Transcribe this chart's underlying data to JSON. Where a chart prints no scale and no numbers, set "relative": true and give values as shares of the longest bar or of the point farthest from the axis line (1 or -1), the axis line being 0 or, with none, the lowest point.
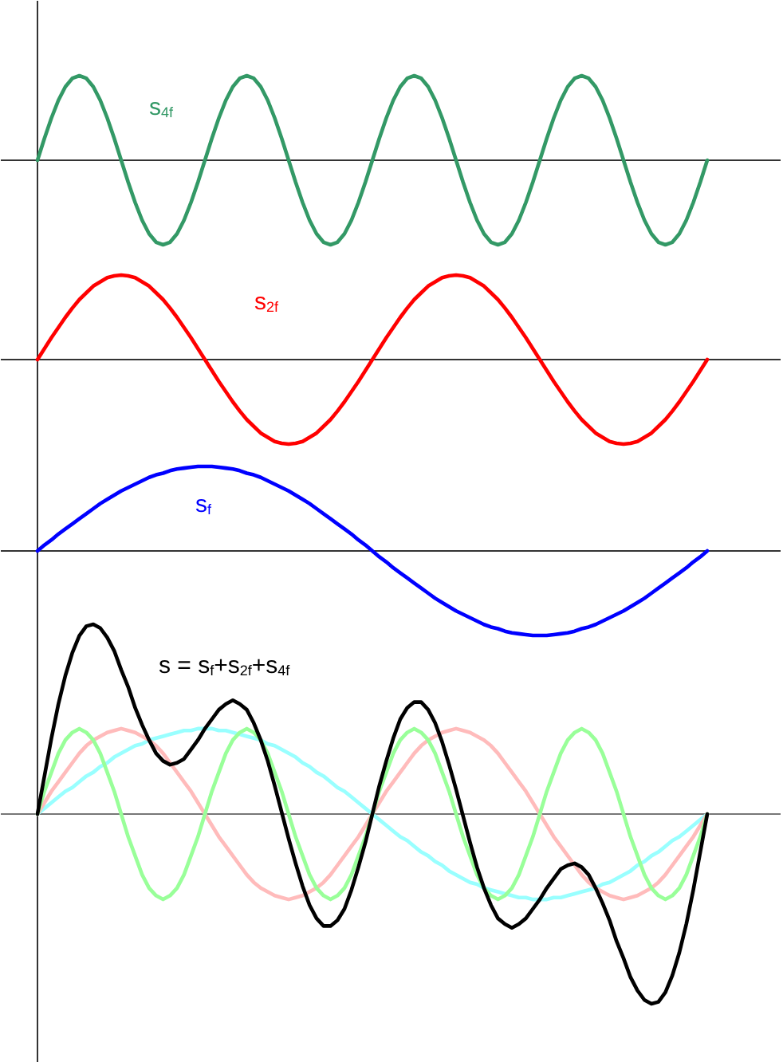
{
  "chart_data": [
    {
      "type": "line",
      "relative": true,
      "categories": [
        null,
        null,
        null,
        null,
        null,
        null,
        null,
        null,
        null,
        null,
        null,
        null,
        null,
        null,
        null,
        null,
        null,
        null,
        null,
        null,
        null,
        null,
        null,
        null,
        null,
        null,
        null,
        null,
        null,
        null,
        null,
        null,
        null,
        null,
        null,
        null,
        null,
        null,
        null,
        null,
        null,
        null,
        null,
        null,
        null,
        null,
        null,
        null,
        null,
        null,
        null,
        null,
        null,
        null,
        null,
        null,
        null,
        null,
        null,
        null,
        null,
        null,
        null,
        null,
        null,
        null,
        null,
        null,
        null,
        null,
        null,
        null,
        null,
        null,
        null,
        null,
        null,
        null,
        null,
        null,
        null,
        null,
        null,
        null,
        null,
        null,
        null,
        null,
        null,
        null,
        null,
        null,
        null,
        null,
        null,
        null,
        null
      ],
      "series": [
        {
          "name": "s$_{4f}$",
          "color": "#339966",
          "values": [
            0,
            0.26,
            0.5,
            0.71,
            0.87,
            0.97,
            1,
            0.97,
            0.87,
            0.71,
            0.5,
            0.26,
            0,
            -0.26,
            -0.5,
            -0.71,
            -0.87,
            -0.97,
            -1,
            -0.97,
            -0.87,
            -0.71,
            -0.5,
            -0.26,
            0,
            0.26,
            0.5,
            0.71,
            0.87,
            0.97,
            1,
            0.97,
            0.87,
            0.71,
            0.5,
            0.26,
            0,
            -0.26,
            -0.5,
            -0.71,
            -0.87,
            -0.97,
            -1,
            -0.97,
            -0.87,
            -0.71,
            -0.5,
            -0.26,
            0,
            0.26,
            0.5,
            0.71,
            0.87,
            0.97,
            1,
            0.97,
            0.87,
            0.71,
            0.5,
            0.26,
            0,
            -0.26,
            -0.5,
            -0.71,
            -0.87,
            -0.97,
            -1,
            -0.97,
            -0.87,
            -0.71,
            -0.5,
            -0.26,
            0,
            0.26,
            0.5,
            0.71,
            0.87,
            0.97,
            1,
            0.97,
            0.87,
            0.71,
            0.5,
            0.26,
            0,
            -0.26,
            -0.5,
            -0.71,
            -0.87,
            -0.97,
            -1,
            -0.97,
            -0.87,
            -0.71,
            -0.5,
            -0.26,
            0
          ]
        }
      ]
    },
    {
      "type": "line",
      "relative": true,
      "categories": [
        null,
        null,
        null,
        null,
        null,
        null,
        null,
        null,
        null,
        null,
        null,
        null,
        null,
        null,
        null,
        null,
        null,
        null,
        null,
        null,
        null,
        null,
        null,
        null,
        null,
        null,
        null,
        null,
        null,
        null,
        null,
        null,
        null,
        null,
        null,
        null,
        null,
        null,
        null,
        null,
        null,
        null,
        null,
        null,
        null,
        null,
        null,
        null,
        null,
        null,
        null,
        null,
        null,
        null,
        null,
        null,
        null,
        null,
        null,
        null,
        null,
        null,
        null,
        null,
        null,
        null,
        null,
        null,
        null,
        null,
        null,
        null,
        null,
        null,
        null,
        null,
        null,
        null,
        null,
        null,
        null,
        null,
        null,
        null,
        null,
        null,
        null,
        null,
        null,
        null,
        null,
        null,
        null,
        null,
        null,
        null,
        null
      ],
      "series": [
        {
          "name": "s$_{2f}$",
          "color": "#ff0000",
          "values": [
            0,
            0.13,
            0.26,
            0.38,
            0.5,
            0.61,
            0.71,
            0.79,
            0.87,
            0.92,
            0.97,
            0.99,
            1,
            0.99,
            0.97,
            0.92,
            0.87,
            0.79,
            0.71,
            0.61,
            0.5,
            0.38,
            0.26,
            0.13,
            0,
            -0.13,
            -0.26,
            -0.38,
            -0.5,
            -0.61,
            -0.71,
            -0.79,
            -0.87,
            -0.92,
            -0.97,
            -0.99,
            -1,
            -0.99,
            -0.97,
            -0.92,
            -0.87,
            -0.79,
            -0.71,
            -0.61,
            -0.5,
            -0.38,
            -0.26,
            -0.13,
            0,
            0.13,
            0.26,
            0.38,
            0.5,
            0.61,
            0.71,
            0.79,
            0.87,
            0.92,
            0.97,
            0.99,
            1,
            0.99,
            0.97,
            0.92,
            0.87,
            0.79,
            0.71,
            0.61,
            0.5,
            0.38,
            0.26,
            0.13,
            0,
            -0.13,
            -0.26,
            -0.38,
            -0.5,
            -0.61,
            -0.71,
            -0.79,
            -0.87,
            -0.92,
            -0.97,
            -0.99,
            -1,
            -0.99,
            -0.97,
            -0.92,
            -0.87,
            -0.79,
            -0.71,
            -0.61,
            -0.5,
            -0.38,
            -0.26,
            -0.13,
            0
          ]
        }
      ]
    },
    {
      "type": "line",
      "relative": true,
      "categories": [
        null,
        null,
        null,
        null,
        null,
        null,
        null,
        null,
        null,
        null,
        null,
        null,
        null,
        null,
        null,
        null,
        null,
        null,
        null,
        null,
        null,
        null,
        null,
        null,
        null,
        null,
        null,
        null,
        null,
        null,
        null,
        null,
        null,
        null,
        null,
        null,
        null,
        null,
        null,
        null,
        null,
        null,
        null,
        null,
        null,
        null,
        null,
        null,
        null,
        null,
        null,
        null,
        null,
        null,
        null,
        null,
        null,
        null,
        null,
        null,
        null,
        null,
        null,
        null,
        null,
        null,
        null,
        null,
        null,
        null,
        null,
        null,
        null,
        null,
        null,
        null,
        null,
        null,
        null,
        null,
        null,
        null,
        null,
        null,
        null,
        null,
        null,
        null,
        null,
        null,
        null,
        null,
        null,
        null,
        null,
        null,
        null
      ],
      "series": [
        {
          "name": "s$_{f}$",
          "color": "#0000ff",
          "values": [
            0,
            0.07,
            0.13,
            0.2,
            0.26,
            0.32,
            0.38,
            0.44,
            0.5,
            0.56,
            0.61,
            0.66,
            0.71,
            0.75,
            0.79,
            0.83,
            0.87,
            0.9,
            0.92,
            0.95,
            0.97,
            0.98,
            0.99,
            1,
            1,
            1,
            0.99,
            0.98,
            0.97,
            0.95,
            0.92,
            0.9,
            0.87,
            0.83,
            0.79,
            0.75,
            0.71,
            0.66,
            0.61,
            0.56,
            0.5,
            0.44,
            0.38,
            0.32,
            0.26,
            0.2,
            0.13,
            0.07,
            0,
            -0.07,
            -0.13,
            -0.2,
            -0.26,
            -0.32,
            -0.38,
            -0.44,
            -0.5,
            -0.56,
            -0.61,
            -0.66,
            -0.71,
            -0.75,
            -0.79,
            -0.83,
            -0.87,
            -0.9,
            -0.92,
            -0.95,
            -0.97,
            -0.98,
            -0.99,
            -1,
            -1,
            -1,
            -0.99,
            -0.98,
            -0.97,
            -0.95,
            -0.92,
            -0.9,
            -0.87,
            -0.83,
            -0.79,
            -0.75,
            -0.71,
            -0.66,
            -0.61,
            -0.56,
            -0.5,
            -0.44,
            -0.38,
            -0.32,
            -0.26,
            -0.2,
            -0.13,
            -0.07,
            0
          ]
        }
      ]
    },
    {
      "type": "line",
      "relative": true,
      "categories": [
        null,
        null,
        null,
        null,
        null,
        null,
        null,
        null,
        null,
        null,
        null,
        null,
        null,
        null,
        null,
        null,
        null,
        null,
        null,
        null,
        null,
        null,
        null,
        null,
        null,
        null,
        null,
        null,
        null,
        null,
        null,
        null,
        null,
        null,
        null,
        null,
        null,
        null,
        null,
        null,
        null,
        null,
        null,
        null,
        null,
        null,
        null,
        null,
        null,
        null,
        null,
        null,
        null,
        null,
        null,
        null,
        null,
        null,
        null,
        null,
        null,
        null,
        null,
        null,
        null,
        null,
        null,
        null,
        null,
        null,
        null,
        null,
        null,
        null,
        null,
        null,
        null,
        null,
        null,
        null,
        null,
        null,
        null,
        null,
        null,
        null,
        null,
        null,
        null,
        null,
        null,
        null,
        null,
        null,
        null,
        null,
        null
      ],
      "series": [
        {
          "color": "#99ffff",
          "values": [
            0,
            0.03,
            0.06,
            0.09,
            0.12,
            0.14,
            0.17,
            0.2,
            0.22,
            0.25,
            0.27,
            0.3,
            0.32,
            0.34,
            0.36,
            0.37,
            0.39,
            0.4,
            0.41,
            0.42,
            0.43,
            0.44,
            0.44,
            0.45,
            0.45,
            0.45,
            0.44,
            0.44,
            0.43,
            0.42,
            0.41,
            0.4,
            0.39,
            0.37,
            0.36,
            0.34,
            0.32,
            0.3,
            0.27,
            0.25,
            0.22,
            0.2,
            0.17,
            0.14,
            0.12,
            0.09,
            0.06,
            0.03,
            0,
            -0.03,
            -0.06,
            -0.09,
            -0.12,
            -0.14,
            -0.17,
            -0.2,
            -0.22,
            -0.25,
            -0.27,
            -0.3,
            -0.32,
            -0.34,
            -0.36,
            -0.37,
            -0.39,
            -0.4,
            -0.41,
            -0.42,
            -0.43,
            -0.44,
            -0.44,
            -0.45,
            -0.45,
            -0.45,
            -0.44,
            -0.44,
            -0.43,
            -0.42,
            -0.41,
            -0.4,
            -0.39,
            -0.37,
            -0.36,
            -0.34,
            -0.32,
            -0.3,
            -0.27,
            -0.25,
            -0.22,
            -0.2,
            -0.17,
            -0.14,
            -0.12,
            -0.09,
            -0.06,
            -0.03,
            0
          ]
        },
        {
          "color": "#ffbbbb",
          "values": [
            0,
            0.06,
            0.12,
            0.17,
            0.22,
            0.27,
            0.32,
            0.36,
            0.39,
            0.41,
            0.43,
            0.44,
            0.45,
            0.44,
            0.43,
            0.41,
            0.39,
            0.36,
            0.32,
            0.27,
            0.22,
            0.17,
            0.12,
            0.06,
            0,
            -0.06,
            -0.12,
            -0.17,
            -0.22,
            -0.27,
            -0.32,
            -0.36,
            -0.39,
            -0.41,
            -0.43,
            -0.44,
            -0.45,
            -0.44,
            -0.43,
            -0.41,
            -0.39,
            -0.36,
            -0.32,
            -0.27,
            -0.22,
            -0.17,
            -0.12,
            -0.06,
            0,
            0.06,
            0.12,
            0.17,
            0.22,
            0.27,
            0.32,
            0.36,
            0.39,
            0.41,
            0.43,
            0.44,
            0.45,
            0.44,
            0.43,
            0.41,
            0.39,
            0.36,
            0.32,
            0.27,
            0.22,
            0.17,
            0.12,
            0.06,
            0,
            -0.06,
            -0.12,
            -0.17,
            -0.22,
            -0.27,
            -0.32,
            -0.36,
            -0.39,
            -0.41,
            -0.43,
            -0.44,
            -0.45,
            -0.44,
            -0.43,
            -0.41,
            -0.39,
            -0.36,
            -0.32,
            -0.27,
            -0.22,
            -0.17,
            -0.12,
            -0.06,
            0
          ]
        },
        {
          "color": "#99ff99",
          "values": [
            0,
            0.12,
            0.22,
            0.32,
            0.39,
            0.43,
            0.45,
            0.43,
            0.39,
            0.32,
            0.22,
            0.12,
            0,
            -0.12,
            -0.22,
            -0.32,
            -0.39,
            -0.43,
            -0.45,
            -0.43,
            -0.39,
            -0.32,
            -0.22,
            -0.12,
            0,
            0.12,
            0.22,
            0.32,
            0.39,
            0.43,
            0.45,
            0.43,
            0.39,
            0.32,
            0.22,
            0.12,
            0,
            -0.12,
            -0.22,
            -0.32,
            -0.39,
            -0.43,
            -0.45,
            -0.43,
            -0.39,
            -0.32,
            -0.22,
            -0.12,
            0,
            0.12,
            0.22,
            0.32,
            0.39,
            0.43,
            0.45,
            0.43,
            0.39,
            0.32,
            0.22,
            0.12,
            0,
            -0.12,
            -0.22,
            -0.32,
            -0.39,
            -0.43,
            -0.45,
            -0.43,
            -0.39,
            -0.32,
            -0.22,
            -0.12,
            0,
            0.12,
            0.22,
            0.32,
            0.39,
            0.43,
            0.45,
            0.43,
            0.39,
            0.32,
            0.22,
            0.12,
            0,
            -0.12,
            -0.22,
            -0.32,
            -0.39,
            -0.43,
            -0.45,
            -0.43,
            -0.39,
            -0.32,
            -0.22,
            -0.12,
            0
          ]
        },
        {
          "name": "s = s$_{f}$+s$_{2f}$+s$_{4f}$",
          "color": "#000000",
          "values": [
            0,
            0.2,
            0.4,
            0.58,
            0.73,
            0.85,
            0.94,
            0.99,
            1,
            0.98,
            0.93,
            0.86,
            0.76,
            0.67,
            0.56,
            0.47,
            0.39,
            0.32,
            0.28,
            0.26,
            0.27,
            0.29,
            0.34,
            0.39,
            0.45,
            0.5,
            0.55,
            0.58,
            0.6,
            0.58,
            0.55,
            0.48,
            0.39,
            0.28,
            0.15,
            0.01,
            -0.13,
            -0.26,
            -0.38,
            -0.48,
            -0.55,
            -0.59,
            -0.59,
            -0.56,
            -0.5,
            -0.4,
            -0.28,
            -0.15,
            0,
            0.15,
            0.28,
            0.4,
            0.5,
            0.56,
            0.59,
            0.59,
            0.55,
            0.48,
            0.38,
            0.26,
            0.13,
            -0.01,
            -0.15,
            -0.28,
            -0.39,
            -0.48,
            -0.55,
            -0.58,
            -0.6,
            -0.58,
            -0.55,
            -0.5,
            -0.45,
            -0.39,
            -0.34,
            -0.29,
            -0.27,
            -0.26,
            -0.28,
            -0.32,
            -0.39,
            -0.47,
            -0.56,
            -0.67,
            -0.76,
            -0.86,
            -0.93,
            -0.98,
            -1,
            -0.99,
            -0.94,
            -0.85,
            -0.73,
            -0.58,
            -0.4,
            -0.2,
            0
          ]
        }
      ]
    }
  ]
}
